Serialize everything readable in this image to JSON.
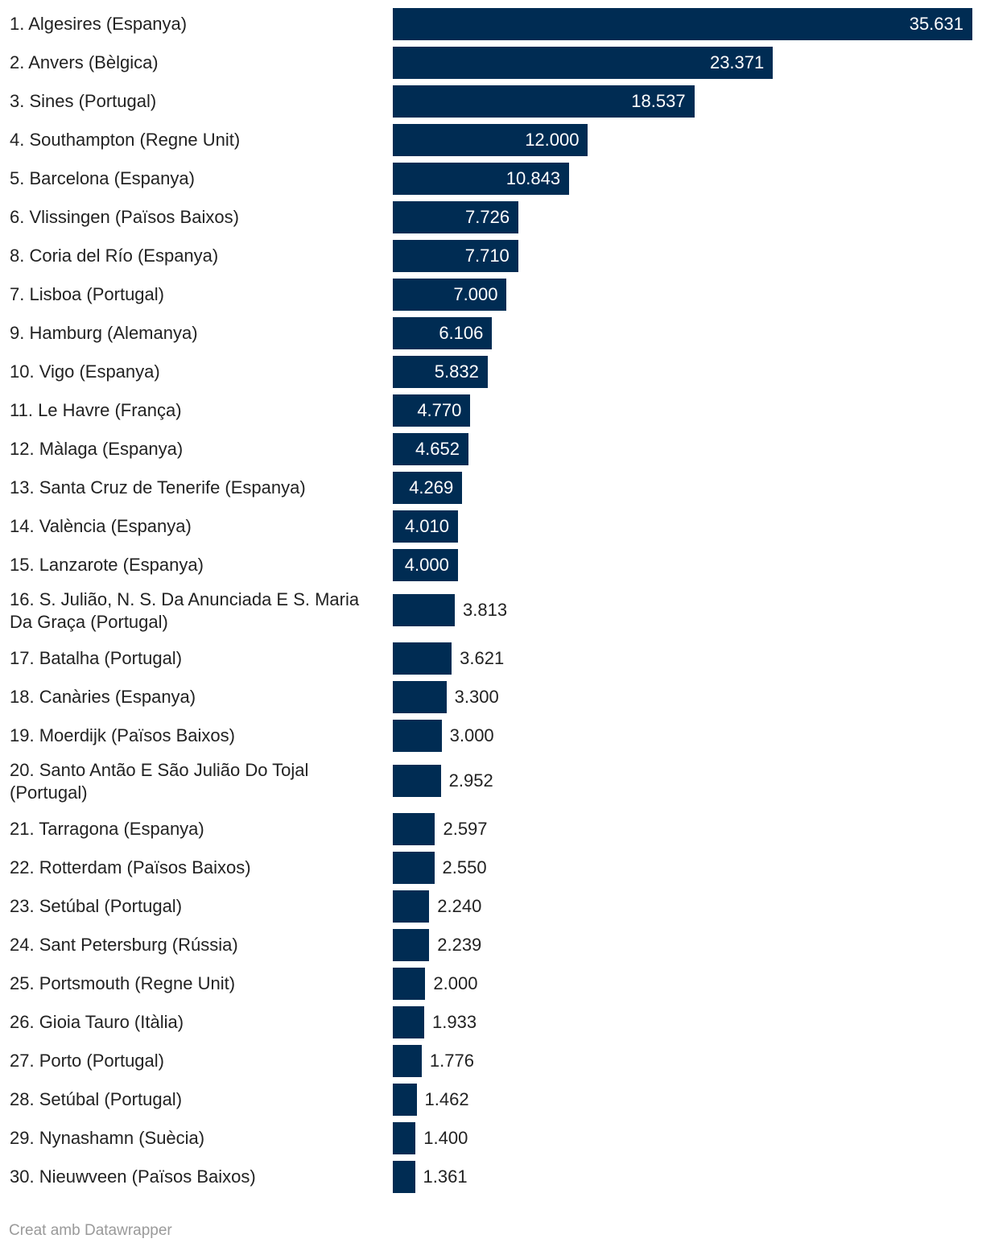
{
  "chart_data": {
    "type": "bar",
    "orientation": "horizontal",
    "categories": [
      "1. Algesires (Espanya)",
      "2. Anvers (Bèlgica)",
      "3. Sines (Portugal)",
      "4. Southampton (Regne Unit)",
      "5. Barcelona (Espanya)",
      "6. Vlissingen (Països Baixos)",
      "8. Coria del Río (Espanya)",
      "7. Lisboa (Portugal)",
      "9. Hamburg (Alemanya)",
      "10. Vigo (Espanya)",
      "11. Le Havre (França)",
      "12. Màlaga (Espanya)",
      "13. Santa Cruz de Tenerife (Espanya)",
      "14. València (Espanya)",
      "15. Lanzarote (Espanya)",
      "16. S. Julião, N. S. Da Anunciada E S. Maria Da Graça (Portugal)",
      "17. Batalha (Portugal)",
      "18. Canàries (Espanya)",
      "19. Moerdijk (Països Baixos)",
      "20. Santo Antão E São Julião Do Tojal (Portugal)",
      "21. Tarragona (Espanya)",
      "22. Rotterdam (Països Baixos)",
      "23. Setúbal (Portugal)",
      "24. Sant Petersburg (Rússia)",
      "25. Portsmouth (Regne Unit)",
      "26. Gioia Tauro (Itàlia)",
      "27. Porto (Portugal)",
      "28. Setúbal (Portugal)",
      "29. Nynashamn (Suècia)",
      "30. Nieuwveen (Països Baixos)"
    ],
    "values": [
      35631,
      23371,
      18537,
      12000,
      10843,
      7726,
      7710,
      7000,
      6106,
      5832,
      4770,
      4652,
      4269,
      4010,
      4000,
      3813,
      3621,
      3300,
      3000,
      2952,
      2597,
      2550,
      2240,
      2239,
      2000,
      1933,
      1776,
      1462,
      1400,
      1361
    ],
    "value_labels": [
      "35.631",
      "23.371",
      "18.537",
      "12.000",
      "10.843",
      "7.726",
      "7.710",
      "7.000",
      "6.106",
      "5.832",
      "4.770",
      "4.652",
      "4.269",
      "4.010",
      "4.000",
      "3.813",
      "3.621",
      "3.300",
      "3.000",
      "2.952",
      "2.597",
      "2.550",
      "2.240",
      "2.239",
      "2.000",
      "1.933",
      "1.776",
      "1.462",
      "1.400",
      "1.361"
    ],
    "xlim": [
      0,
      35631
    ],
    "grid": false,
    "bar_color": "#002c53",
    "inside_label_color": "#ffffff",
    "outside_label_color": "#222222"
  },
  "footer": {
    "credit": "Creat amb Datawrapper"
  }
}
